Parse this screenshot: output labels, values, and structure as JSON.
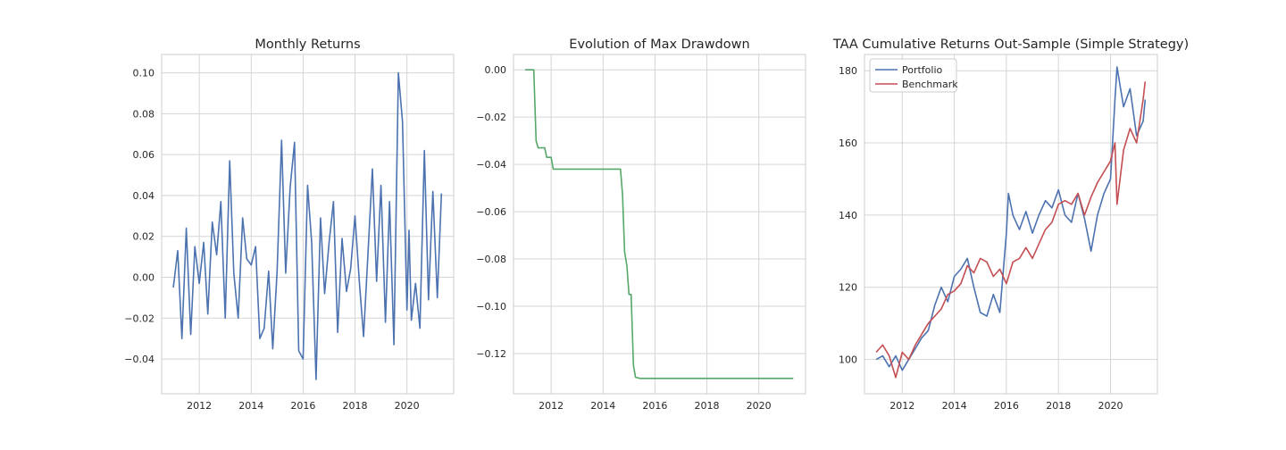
{
  "chart_data": [
    {
      "type": "line",
      "title": "Monthly Returns",
      "xlabel": "",
      "ylabel": "",
      "grid": true,
      "legend": "none",
      "xlim": [
        2010.55,
        2021.8
      ],
      "ylim": [
        -0.057,
        0.109
      ],
      "xticks": [
        2012,
        2014,
        2016,
        2018,
        2020
      ],
      "xtick_labels": [
        "2012",
        "2014",
        "2016",
        "2018",
        "2020"
      ],
      "yticks": [
        -0.04,
        -0.02,
        0.0,
        0.02,
        0.04,
        0.06,
        0.08,
        0.1
      ],
      "ytick_labels": [
        "−0.04",
        "−0.02",
        "0.00",
        "0.02",
        "0.04",
        "0.06",
        "0.08",
        "0.10"
      ],
      "series": [
        {
          "color": "#4c72b0",
          "x": [
            2011.0,
            2011.17,
            2011.33,
            2011.5,
            2011.67,
            2011.83,
            2012.0,
            2012.17,
            2012.33,
            2012.5,
            2012.67,
            2012.83,
            2013.0,
            2013.17,
            2013.33,
            2013.5,
            2013.67,
            2013.83,
            2014.0,
            2014.17,
            2014.33,
            2014.5,
            2014.67,
            2014.83,
            2015.0,
            2015.17,
            2015.33,
            2015.5,
            2015.67,
            2015.83,
            2016.0,
            2016.17,
            2016.33,
            2016.5,
            2016.67,
            2016.83,
            2017.0,
            2017.17,
            2017.33,
            2017.5,
            2017.67,
            2017.83,
            2018.0,
            2018.17,
            2018.33,
            2018.5,
            2018.67,
            2018.83,
            2019.0,
            2019.17,
            2019.33,
            2019.5,
            2019.67,
            2019.83,
            2020.0,
            2020.08,
            2020.17,
            2020.33,
            2020.5,
            2020.67,
            2020.83,
            2021.0,
            2021.17,
            2021.33
          ],
          "y": [
            -0.005,
            0.013,
            -0.03,
            0.024,
            -0.028,
            0.015,
            -0.003,
            0.017,
            -0.018,
            0.027,
            0.011,
            0.037,
            -0.02,
            0.057,
            0.002,
            -0.02,
            0.029,
            0.009,
            0.006,
            0.015,
            -0.03,
            -0.025,
            0.003,
            -0.035,
            0.003,
            0.067,
            0.002,
            0.044,
            0.066,
            -0.036,
            -0.04,
            0.045,
            0.017,
            -0.05,
            0.029,
            -0.008,
            0.017,
            0.037,
            -0.027,
            0.019,
            -0.007,
            0.004,
            0.03,
            -0.003,
            -0.029,
            0.012,
            0.053,
            -0.002,
            0.045,
            -0.022,
            0.037,
            -0.033,
            0.1,
            0.076,
            -0.016,
            0.023,
            -0.021,
            -0.003,
            -0.025,
            0.062,
            -0.011,
            0.042,
            -0.01,
            0.041
          ]
        }
      ]
    },
    {
      "type": "line",
      "title": "Evolution of Max Drawdown",
      "xlabel": "",
      "ylabel": "",
      "grid": true,
      "legend": "none",
      "xlim": [
        2010.55,
        2021.8
      ],
      "ylim": [
        -0.137,
        0.0065
      ],
      "xticks": [
        2012,
        2014,
        2016,
        2018,
        2020
      ],
      "xtick_labels": [
        "2012",
        "2014",
        "2016",
        "2018",
        "2020"
      ],
      "yticks": [
        -0.12,
        -0.1,
        -0.08,
        -0.06,
        -0.04,
        -0.02,
        0.0
      ],
      "ytick_labels": [
        "−0.12",
        "−0.10",
        "−0.08",
        "−0.06",
        "−0.04",
        "−0.02",
        "0.00"
      ],
      "series": [
        {
          "color": "#55a868",
          "x": [
            2011.0,
            2011.33,
            2011.42,
            2011.5,
            2011.75,
            2011.83,
            2012.0,
            2012.08,
            2014.67,
            2014.75,
            2014.83,
            2014.92,
            2015.0,
            2015.08,
            2015.17,
            2015.25,
            2015.42,
            2021.33
          ],
          "y": [
            0.0,
            0.0,
            -0.03,
            -0.033,
            -0.033,
            -0.037,
            -0.037,
            -0.042,
            -0.042,
            -0.053,
            -0.077,
            -0.083,
            -0.095,
            -0.095,
            -0.125,
            -0.13,
            -0.1305,
            -0.1305
          ]
        }
      ]
    },
    {
      "type": "line",
      "title": "TAA Cumulative Returns Out-Sample (Simple Strategy)",
      "xlabel": "",
      "ylabel": "",
      "grid": true,
      "legend": "top-left",
      "xlim": [
        2010.55,
        2021.8
      ],
      "ylim": [
        90.5,
        184.5
      ],
      "xticks": [
        2012,
        2014,
        2016,
        2018,
        2020
      ],
      "xtick_labels": [
        "2012",
        "2014",
        "2016",
        "2018",
        "2020"
      ],
      "yticks": [
        100,
        120,
        140,
        160,
        180
      ],
      "ytick_labels": [
        "100",
        "120",
        "140",
        "160",
        "180"
      ],
      "series": [
        {
          "name": "Portfolio",
          "color": "#4c72b0",
          "x": [
            2011.0,
            2011.25,
            2011.5,
            2011.75,
            2012.0,
            2012.25,
            2012.5,
            2012.75,
            2013.0,
            2013.25,
            2013.5,
            2013.75,
            2014.0,
            2014.25,
            2014.5,
            2014.75,
            2015.0,
            2015.25,
            2015.5,
            2015.75,
            2016.0,
            2016.08,
            2016.25,
            2016.5,
            2016.75,
            2017.0,
            2017.25,
            2017.5,
            2017.75,
            2018.0,
            2018.25,
            2018.5,
            2018.75,
            2019.0,
            2019.25,
            2019.5,
            2019.75,
            2020.0,
            2020.17,
            2020.25,
            2020.5,
            2020.75,
            2021.0,
            2021.25,
            2021.33
          ],
          "y": [
            100,
            101,
            98,
            101,
            97,
            100,
            103,
            106,
            108,
            115,
            120,
            116,
            123,
            125,
            128,
            120,
            113,
            112,
            118,
            113,
            135,
            146,
            140,
            136,
            141,
            135,
            140,
            144,
            142,
            147,
            140,
            138,
            146,
            139,
            130,
            140,
            146,
            150,
            172,
            181,
            170,
            175,
            162,
            166,
            172
          ]
        },
        {
          "name": "Benchmark",
          "color": "#c44e52",
          "x": [
            2011.0,
            2011.25,
            2011.5,
            2011.75,
            2012.0,
            2012.25,
            2012.5,
            2012.75,
            2013.0,
            2013.25,
            2013.5,
            2013.75,
            2014.0,
            2014.25,
            2014.5,
            2014.75,
            2015.0,
            2015.25,
            2015.5,
            2015.75,
            2016.0,
            2016.25,
            2016.5,
            2016.75,
            2017.0,
            2017.25,
            2017.5,
            2017.75,
            2018.0,
            2018.25,
            2018.5,
            2018.75,
            2019.0,
            2019.25,
            2019.5,
            2019.75,
            2020.0,
            2020.17,
            2020.25,
            2020.5,
            2020.75,
            2021.0,
            2021.25,
            2021.33
          ],
          "y": [
            102,
            104,
            101,
            95,
            102,
            100,
            104,
            107,
            110,
            112,
            114,
            118,
            119,
            121,
            126,
            124,
            128,
            127,
            123,
            125,
            121,
            127,
            128,
            131,
            128,
            132,
            136,
            138,
            143,
            144,
            143,
            146,
            140,
            145,
            149,
            152,
            155,
            160,
            143,
            158,
            164,
            160,
            172,
            177
          ]
        }
      ]
    }
  ]
}
